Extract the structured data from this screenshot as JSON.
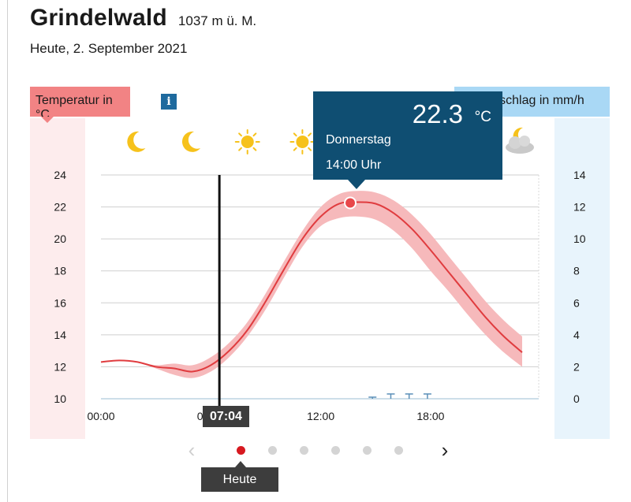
{
  "header": {
    "location": "Grindelwald",
    "altitude": "1037 m ü. M.",
    "date": "Heute, 2. September 2021"
  },
  "temperature_label": "Temperatur in °C",
  "info_icon_glyph": "i",
  "precipitation_label": "Niederschlag in mm/h",
  "weather_icons": [
    "moon-icon",
    "moon-icon",
    "sun-icon",
    "sun-icon",
    "sun-icon",
    "sun-icon",
    "sun-icon",
    "moon-cloud-icon"
  ],
  "tooltip": {
    "value": "22.3",
    "unit": "°C",
    "day": "Donnerstag",
    "time": "14:00 Uhr"
  },
  "now_marker": {
    "label": "07:04"
  },
  "x_axis_labels": [
    "00:00",
    "06:00",
    "12:00",
    "18:00"
  ],
  "carousel": {
    "prev_glyph": "‹",
    "next_glyph": "›",
    "dot_count": 6,
    "active_index": 0,
    "active_tooltip": "Heute"
  },
  "colors": {
    "temp_line": "#e03c3f",
    "temp_band": "#f6b9bb",
    "precip": "#5a8fb8",
    "tooltip_bg": "#0f4e72"
  },
  "chart_data": {
    "type": "line",
    "x_unit": "hour",
    "x_range": [
      0,
      23
    ],
    "y_left": {
      "label": "Temperatur in °C",
      "range": [
        10,
        24
      ],
      "ticks": [
        10,
        12,
        14,
        16,
        18,
        20,
        22,
        24
      ]
    },
    "y_right": {
      "label": "Niederschlag in mm/h",
      "range": [
        0,
        14
      ],
      "ticks": [
        0,
        2,
        4,
        6,
        8,
        10,
        12,
        14
      ]
    },
    "temperature": {
      "hours": [
        0,
        1,
        2,
        3,
        4,
        5,
        6,
        7,
        8,
        9,
        10,
        11,
        12,
        13,
        14,
        15,
        16,
        17,
        18,
        19,
        20,
        21,
        22,
        23
      ],
      "values": [
        12.3,
        12.4,
        12.3,
        12.0,
        11.9,
        11.7,
        12.1,
        13.0,
        14.3,
        16.1,
        18.1,
        20.0,
        21.4,
        22.2,
        22.3,
        22.2,
        21.6,
        20.6,
        19.3,
        17.9,
        16.5,
        15.1,
        13.9,
        12.9
      ],
      "low": [
        12.3,
        12.4,
        12.3,
        11.9,
        11.5,
        11.3,
        11.7,
        12.6,
        13.9,
        15.6,
        17.6,
        19.5,
        20.8,
        21.3,
        21.4,
        21.2,
        20.5,
        19.4,
        18.0,
        16.7,
        15.3,
        14.0,
        12.9,
        12.0
      ],
      "high": [
        12.3,
        12.4,
        12.3,
        12.1,
        12.2,
        12.1,
        12.6,
        13.5,
        14.8,
        16.6,
        18.6,
        20.5,
        22.0,
        22.8,
        23.0,
        22.9,
        22.4,
        21.5,
        20.3,
        18.9,
        17.5,
        16.1,
        14.9,
        13.9
      ]
    },
    "precipitation": {
      "hours": [
        15,
        16,
        17,
        18
      ],
      "values": [
        0.1,
        0.3,
        0.3,
        0.3
      ]
    },
    "highlight": {
      "hour": 14,
      "value": 22.3
    },
    "now_hour": 7.07
  }
}
